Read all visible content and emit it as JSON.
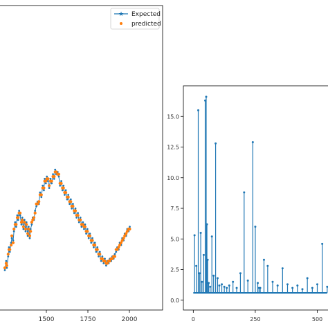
{
  "chart_data": [
    {
      "type": "line",
      "title": "",
      "xlabel": "",
      "ylabel": "",
      "xlim": [
        1200,
        2200
      ],
      "ylim": [
        0,
        1
      ],
      "x_ticks": [
        "1500",
        "1750",
        "2000"
      ],
      "legend": {
        "placement": "top-right",
        "entries": [
          "Expected",
          "predicted"
        ]
      },
      "series": [
        {
          "name": "Expected",
          "style": "line-with-star-markers",
          "color": "#1f77b4",
          "x": [
            1250,
            1258,
            1262,
            1270,
            1275,
            1280,
            1288,
            1292,
            1300,
            1305,
            1312,
            1318,
            1325,
            1330,
            1336,
            1342,
            1350,
            1355,
            1362,
            1368,
            1375,
            1380,
            1388,
            1393,
            1400,
            1405,
            1412,
            1418,
            1425,
            1432,
            1440,
            1447,
            1455,
            1462,
            1470,
            1478,
            1485,
            1490,
            1497,
            1503,
            1510,
            1517,
            1525,
            1532,
            1540,
            1547,
            1553,
            1560,
            1568,
            1575,
            1582,
            1590,
            1597,
            1603,
            1610,
            1617,
            1625,
            1632,
            1640,
            1647,
            1653,
            1660,
            1668,
            1675,
            1682,
            1690,
            1697,
            1705,
            1712,
            1720,
            1727,
            1733,
            1740,
            1747,
            1755,
            1762,
            1770,
            1777,
            1785,
            1792,
            1800,
            1807,
            1815,
            1822,
            1830,
            1837,
            1845,
            1852,
            1860,
            1867,
            1875,
            1882,
            1890,
            1897,
            1905,
            1912,
            1920,
            1927,
            1935,
            1942,
            1950,
            1957,
            1965,
            1972,
            1980,
            1987,
            1995,
            2002
          ],
          "y": [
            0.12,
            0.16,
            0.13,
            0.18,
            0.22,
            0.2,
            0.24,
            0.26,
            0.25,
            0.29,
            0.33,
            0.31,
            0.36,
            0.34,
            0.38,
            0.36,
            0.32,
            0.35,
            0.3,
            0.34,
            0.29,
            0.33,
            0.27,
            0.31,
            0.26,
            0.3,
            0.32,
            0.35,
            0.34,
            0.38,
            0.4,
            0.42,
            0.41,
            0.46,
            0.44,
            0.49,
            0.47,
            0.52,
            0.5,
            0.53,
            0.51,
            0.48,
            0.52,
            0.5,
            0.54,
            0.52,
            0.56,
            0.54,
            0.55,
            0.53,
            0.49,
            0.51,
            0.47,
            0.49,
            0.45,
            0.47,
            0.43,
            0.45,
            0.41,
            0.43,
            0.39,
            0.41,
            0.37,
            0.39,
            0.35,
            0.37,
            0.33,
            0.35,
            0.31,
            0.33,
            0.3,
            0.32,
            0.28,
            0.3,
            0.26,
            0.28,
            0.24,
            0.26,
            0.22,
            0.24,
            0.2,
            0.22,
            0.18,
            0.2,
            0.16,
            0.18,
            0.15,
            0.17,
            0.14,
            0.16,
            0.15,
            0.17,
            0.16,
            0.18,
            0.17,
            0.19,
            0.2,
            0.22,
            0.21,
            0.24,
            0.23,
            0.26,
            0.25,
            0.28,
            0.27,
            0.3,
            0.29,
            0.31
          ]
        },
        {
          "name": "predicted",
          "style": "dot-markers",
          "color": "#ff7f0e",
          "x": [
            1250,
            1258,
            1262,
            1270,
            1275,
            1280,
            1288,
            1292,
            1300,
            1305,
            1312,
            1318,
            1325,
            1330,
            1336,
            1342,
            1350,
            1355,
            1362,
            1368,
            1375,
            1380,
            1388,
            1393,
            1400,
            1405,
            1412,
            1418,
            1425,
            1432,
            1440,
            1447,
            1455,
            1462,
            1470,
            1478,
            1485,
            1490,
            1497,
            1503,
            1510,
            1517,
            1525,
            1532,
            1540,
            1547,
            1553,
            1560,
            1568,
            1575,
            1582,
            1590,
            1597,
            1603,
            1610,
            1617,
            1625,
            1632,
            1640,
            1647,
            1653,
            1660,
            1668,
            1675,
            1682,
            1690,
            1697,
            1705,
            1712,
            1720,
            1727,
            1733,
            1740,
            1747,
            1755,
            1762,
            1770,
            1777,
            1785,
            1792,
            1800,
            1807,
            1815,
            1822,
            1830,
            1837,
            1845,
            1852,
            1860,
            1867,
            1875,
            1882,
            1890,
            1897,
            1905,
            1912,
            1920,
            1927,
            1935,
            1942,
            1950,
            1957,
            1965,
            1972,
            1980,
            1987,
            1995,
            2002
          ],
          "y": [
            0.13,
            0.15,
            0.14,
            0.19,
            0.21,
            0.21,
            0.23,
            0.27,
            0.24,
            0.3,
            0.32,
            0.32,
            0.35,
            0.35,
            0.37,
            0.37,
            0.33,
            0.34,
            0.31,
            0.33,
            0.3,
            0.32,
            0.28,
            0.3,
            0.27,
            0.29,
            0.33,
            0.34,
            0.35,
            0.37,
            0.41,
            0.41,
            0.42,
            0.45,
            0.45,
            0.48,
            0.48,
            0.51,
            0.51,
            0.52,
            0.52,
            0.49,
            0.51,
            0.51,
            0.53,
            0.53,
            0.55,
            0.55,
            0.54,
            0.54,
            0.5,
            0.5,
            0.48,
            0.48,
            0.46,
            0.46,
            0.44,
            0.44,
            0.42,
            0.42,
            0.4,
            0.4,
            0.38,
            0.38,
            0.36,
            0.36,
            0.34,
            0.34,
            0.32,
            0.32,
            0.31,
            0.31,
            0.29,
            0.29,
            0.27,
            0.27,
            0.25,
            0.25,
            0.23,
            0.23,
            0.21,
            0.21,
            0.19,
            0.19,
            0.17,
            0.17,
            0.16,
            0.16,
            0.15,
            0.15,
            0.16,
            0.16,
            0.17,
            0.17,
            0.18,
            0.18,
            0.21,
            0.21,
            0.22,
            0.23,
            0.24,
            0.25,
            0.26,
            0.27,
            0.28,
            0.29,
            0.3,
            0.3
          ]
        }
      ]
    },
    {
      "type": "line",
      "title": "",
      "xlabel": "",
      "ylabel": "",
      "xlim": [
        -40,
        560
      ],
      "ylim": [
        -0.8,
        17.5
      ],
      "x_ticks": [
        0,
        250,
        500
      ],
      "x_tick_labels": [
        "0",
        "250",
        "500"
      ],
      "y_ticks": [
        0.0,
        2.5,
        5.0,
        7.5,
        10.0,
        12.5,
        15.0
      ],
      "y_tick_labels": [
        "0.0",
        "2.5",
        "5.0",
        "7.5",
        "10.0",
        "12.5",
        "15.0"
      ],
      "series": [
        {
          "style": "line-with-dot-markers",
          "color": "#1f77b4",
          "baseline": 0.6,
          "spikes_x": [
            5,
            12,
            20,
            25,
            30,
            35,
            42,
            48,
            52,
            55,
            58,
            62,
            68,
            75,
            82,
            90,
            98,
            105,
            115,
            125,
            135,
            145,
            160,
            175,
            190,
            205,
            220,
            240,
            250,
            260,
            265,
            270,
            285,
            300,
            320,
            340,
            360,
            380,
            400,
            420,
            440,
            460,
            480,
            500,
            520,
            540
          ],
          "spikes_y": [
            5.3,
            2.8,
            15.5,
            2.2,
            5.5,
            1.5,
            3.7,
            16.3,
            16.6,
            6.2,
            3.3,
            1.4,
            1.1,
            5.2,
            2.0,
            12.8,
            1.8,
            1.2,
            1.3,
            1.1,
            1.0,
            1.2,
            1.5,
            1.0,
            2.2,
            8.8,
            1.6,
            12.9,
            6.0,
            1.4,
            1.0,
            1.0,
            3.3,
            2.8,
            1.5,
            1.2,
            2.6,
            1.3,
            1.0,
            1.2,
            0.9,
            1.8,
            1.0,
            1.3,
            4.6,
            1.1
          ]
        }
      ]
    }
  ]
}
